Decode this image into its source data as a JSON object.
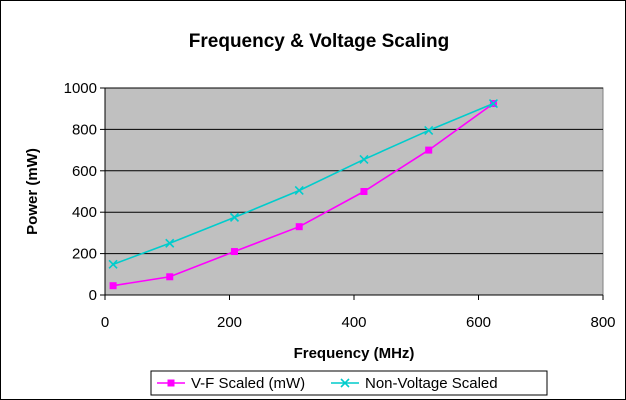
{
  "chart_data": {
    "type": "line",
    "title": "Frequency & Voltage Scaling",
    "xlabel": "Frequency (MHz)",
    "ylabel": "Power (mW)",
    "xlim": [
      0,
      800
    ],
    "ylim": [
      0,
      1000
    ],
    "xticks": [
      "0",
      "200",
      "400",
      "600",
      "800"
    ],
    "yticks": [
      "0",
      "200",
      "400",
      "600",
      "800",
      "1000"
    ],
    "grid": true,
    "legend_position": "bottom",
    "series": [
      {
        "name": "V-F Scaled (mW)",
        "color": "#ff00ff",
        "marker": "square",
        "x": [
          13,
          104,
          208,
          312,
          416,
          520,
          624
        ],
        "y": [
          45,
          88,
          210,
          330,
          500,
          700,
          925
        ]
      },
      {
        "name": "Non-Voltage Scaled",
        "color": "#00cccc",
        "marker": "x",
        "x": [
          13,
          104,
          208,
          312,
          416,
          520,
          624
        ],
        "y": [
          148,
          250,
          375,
          505,
          655,
          795,
          925
        ]
      }
    ]
  }
}
